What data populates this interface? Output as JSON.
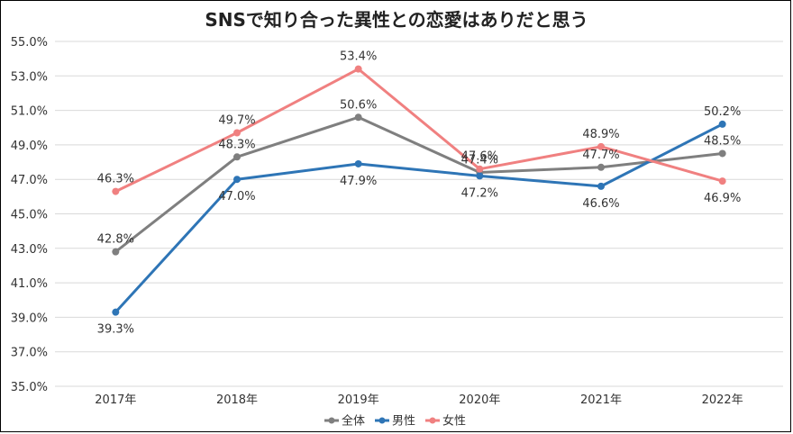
{
  "chart_data": {
    "type": "line",
    "title": "SNSで知り合った異性との恋愛はありだと思う",
    "xlabel": "",
    "ylabel": "",
    "categories": [
      "2017年",
      "2018年",
      "2019年",
      "2020年",
      "2021年",
      "2022年"
    ],
    "ylim": [
      35.0,
      55.0
    ],
    "yticks": [
      "55.0%",
      "53.0%",
      "51.0%",
      "49.0%",
      "47.0%",
      "45.0%",
      "43.0%",
      "41.0%",
      "39.0%",
      "37.0%",
      "35.0%"
    ],
    "grid": true,
    "legend_position": "bottom",
    "series": [
      {
        "name": "全体",
        "color": "#7f7f7f",
        "values": [
          42.8,
          48.3,
          50.6,
          47.4,
          47.7,
          48.5
        ],
        "labels": [
          "42.8%",
          "48.3%",
          "50.6%",
          "47.4%",
          "47.7%",
          "48.5%"
        ]
      },
      {
        "name": "男性",
        "color": "#2e75b6",
        "values": [
          39.3,
          47.0,
          47.9,
          47.2,
          46.6,
          50.2
        ],
        "labels": [
          "39.3%",
          "47.0%",
          "47.9%",
          "47.2%",
          "46.6%",
          "50.2%"
        ]
      },
      {
        "name": "女性",
        "color": "#f08080",
        "values": [
          46.3,
          49.7,
          53.4,
          47.6,
          48.9,
          46.9
        ],
        "labels": [
          "46.3%",
          "49.7%",
          "53.4%",
          "47.6%",
          "48.9%",
          "46.9%"
        ]
      }
    ]
  }
}
